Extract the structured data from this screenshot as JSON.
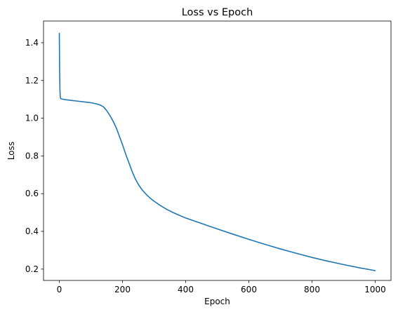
{
  "chart_data": {
    "type": "line",
    "title": "Loss vs Epoch",
    "xlabel": "Epoch",
    "ylabel": "Loss",
    "xlim": [
      -50,
      1050
    ],
    "ylim": [
      0.14,
      1.515
    ],
    "xticks": [
      0,
      200,
      400,
      600,
      800,
      1000
    ],
    "yticks": [
      0.2,
      0.4,
      0.6,
      0.8,
      1.0,
      1.2,
      1.4
    ],
    "xtick_labels": [
      "0",
      "200",
      "400",
      "600",
      "800",
      "1000"
    ],
    "ytick_labels": [
      "0.2",
      "0.4",
      "0.6",
      "0.8",
      "1.0",
      "1.2",
      "1.4"
    ],
    "grid": false,
    "legend": "none",
    "series": [
      {
        "color": "#1f77b4",
        "x": [
          0,
          1,
          2,
          3,
          5,
          10,
          20,
          40,
          60,
          80,
          100,
          120,
          130,
          140,
          150,
          160,
          170,
          180,
          190,
          200,
          210,
          220,
          230,
          240,
          250,
          260,
          270,
          280,
          290,
          300,
          320,
          340,
          360,
          380,
          400,
          450,
          500,
          550,
          600,
          650,
          700,
          750,
          800,
          850,
          900,
          950,
          1000
        ],
        "y": [
          1.45,
          1.25,
          1.15,
          1.11,
          1.103,
          1.101,
          1.098,
          1.094,
          1.09,
          1.086,
          1.082,
          1.075,
          1.069,
          1.06,
          1.04,
          1.015,
          0.985,
          0.95,
          0.905,
          0.86,
          0.81,
          0.765,
          0.72,
          0.68,
          0.65,
          0.625,
          0.605,
          0.588,
          0.573,
          0.56,
          0.537,
          0.517,
          0.5,
          0.485,
          0.471,
          0.442,
          0.413,
          0.385,
          0.358,
          0.332,
          0.307,
          0.284,
          0.262,
          0.242,
          0.224,
          0.207,
          0.192
        ]
      }
    ]
  }
}
